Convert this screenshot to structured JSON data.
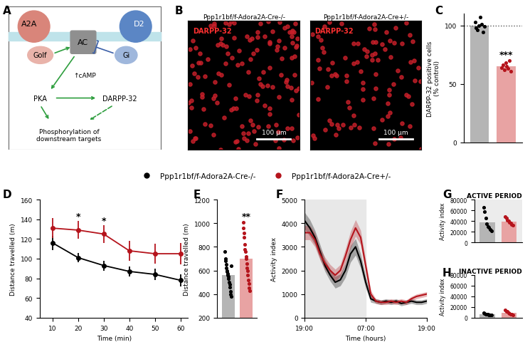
{
  "panel_labels": [
    "A",
    "B",
    "C",
    "D",
    "E",
    "F",
    "G",
    "H"
  ],
  "diagram": {
    "nodes": [
      {
        "label": "A2A"
      },
      {
        "label": "Golf"
      },
      {
        "label": "AC"
      },
      {
        "label": "D2"
      },
      {
        "label": "Gi"
      },
      {
        "label": "↑cAMP"
      },
      {
        "label": "PKA"
      },
      {
        "label": "DARPP-32"
      },
      {
        "label": "Phosphorylation of\ndownstream targets"
      }
    ]
  },
  "images": {
    "titles": [
      "Ppp1r1bf/f-Adora2A-Cre-/-",
      "Ppp1r1bf/f-Adora2A-Cre+/-"
    ],
    "stain": "DARPP-32",
    "scale_bar": "100 µm"
  },
  "chart_data": [
    {
      "type": "bar",
      "ylabel": "DARPP-32 positive cells\n(% control)",
      "categories": [
        null,
        null
      ],
      "values": [
        100,
        65
      ],
      "colors": [
        "#b5b5b5",
        "#e8a3a3"
      ],
      "points": [
        [
          103,
          98,
          96,
          100,
          107,
          101,
          94,
          99
        ],
        [
          64,
          66,
          62,
          68,
          65,
          63,
          70,
          61
        ]
      ],
      "reference": 100,
      "ylim": [
        0,
        110
      ],
      "yticks": [
        0,
        50,
        100
      ],
      "annotations": [
        {
          "text": "***",
          "x": 1
        }
      ]
    },
    {
      "type": "line",
      "xlabel": "Time (min)",
      "ylabel": "Distance travelled (m)",
      "legend": "upper center",
      "x": [
        10,
        20,
        30,
        40,
        50,
        60
      ],
      "series": [
        {
          "name": "Ppp1r1bf/f-Adora2A-Cre-/-",
          "color": "#000000",
          "marker": "o",
          "values": [
            116,
            101,
            93,
            87,
            84,
            78
          ],
          "errors": [
            7,
            5,
            5,
            5,
            6,
            6
          ]
        },
        {
          "name": "Ppp1r1bf/f-Adora2A-Cre+/-",
          "color": "#b5141c",
          "marker": "o",
          "values": [
            131,
            129,
            125,
            108,
            105,
            105
          ],
          "errors": [
            10,
            9,
            9,
            10,
            10,
            11
          ]
        }
      ],
      "xlim": [
        5,
        63
      ],
      "xticks": [
        10,
        20,
        30,
        40,
        50,
        60
      ],
      "ylim": [
        40,
        160
      ],
      "yticks": [
        40,
        60,
        80,
        100,
        120,
        140,
        160
      ],
      "annotations": [
        {
          "text": "*",
          "x": 20
        },
        {
          "text": "*",
          "x": 30
        }
      ]
    },
    {
      "type": "bar",
      "ylabel": "Distance travelled (m)",
      "categories": [
        null,
        null
      ],
      "values": [
        560,
        699
      ],
      "colors": [
        "#b5b5b5",
        "#e8a3a3"
      ],
      "points": [
        [
          760,
          700,
          680,
          650,
          620,
          600,
          590,
          570,
          560,
          550,
          530,
          500,
          480,
          460,
          420,
          400,
          380,
          640
        ],
        [
          1010,
          960,
          920,
          880,
          820,
          780,
          760,
          720,
          700,
          660,
          620,
          600,
          560,
          520,
          490,
          450,
          430
        ]
      ],
      "ylim": [
        200,
        1200
      ],
      "yticks": [
        200,
        400,
        600,
        800,
        1000,
        1200
      ],
      "annotations": [
        {
          "text": "**",
          "x": 1
        }
      ]
    },
    {
      "type": "line",
      "xlabel": "Time (hours)",
      "ylabel": "Activity index",
      "x": [
        0,
        1,
        2,
        3,
        4,
        5,
        6,
        7,
        8,
        9,
        10,
        11,
        12,
        13,
        14,
        15,
        16,
        17,
        18,
        19,
        20,
        21,
        22,
        23,
        24
      ],
      "series": [
        {
          "name": "Ppp1r1bf/f-Adora2A-Cre-/-",
          "color": "#000000",
          "values": [
            4100,
            3800,
            3400,
            2800,
            2200,
            1800,
            1500,
            1600,
            2000,
            2700,
            3000,
            2400,
            1500,
            800,
            700,
            650,
            700,
            650,
            700,
            600,
            650,
            700,
            650,
            650,
            700
          ],
          "errors": [
            350,
            350,
            300,
            300,
            250,
            250,
            250,
            250,
            300,
            350,
            350,
            300,
            250,
            150,
            100,
            100,
            100,
            100,
            100,
            100,
            100,
            100,
            100,
            100,
            100
          ]
        },
        {
          "name": "Ppp1r1bf/f-Adora2A-Cre+/-",
          "color": "#b5141c",
          "values": [
            3600,
            3600,
            3300,
            2700,
            2300,
            2000,
            1800,
            2000,
            2600,
            3300,
            3800,
            3400,
            2200,
            1000,
            700,
            650,
            650,
            700,
            650,
            700,
            650,
            800,
            900,
            950,
            1000
          ],
          "errors": [
            300,
            300,
            300,
            250,
            250,
            250,
            250,
            250,
            300,
            350,
            350,
            300,
            250,
            150,
            100,
            100,
            100,
            100,
            100,
            100,
            100,
            100,
            100,
            100,
            100
          ]
        }
      ],
      "shaded_region": [
        0,
        12
      ],
      "xlim": [
        0,
        24
      ],
      "xticks": [
        {
          "value": 0,
          "label": "19:00"
        },
        {
          "value": 12,
          "label": "07:00"
        },
        {
          "value": 24,
          "label": "19:00"
        }
      ],
      "ylim": [
        0,
        5000
      ],
      "yticks": [
        0,
        1000,
        2000,
        3000,
        4000,
        5000
      ]
    },
    {
      "type": "bar",
      "title": "ACTIVE PERIOD",
      "ylabel": "Activity index",
      "categories": [
        null,
        null
      ],
      "values": [
        38000,
        39000
      ],
      "colors": [
        "#b5b5b5",
        "#e8a3a3"
      ],
      "points": [
        [
          66000,
          58000,
          45000,
          35000,
          30000,
          28000,
          25000,
          22000
        ],
        [
          48000,
          45000,
          42000,
          40000,
          38000,
          36000,
          34000,
          32000
        ]
      ],
      "shaded": true,
      "ylim": [
        0,
        80000
      ],
      "yticks": [
        0,
        20000,
        40000,
        60000,
        80000
      ]
    },
    {
      "type": "bar",
      "title": "INACTIVE PERIOD",
      "ylabel": "Activity index",
      "categories": [
        null,
        null
      ],
      "values": [
        7000,
        9000
      ],
      "colors": [
        "#b5b5b5",
        "#e8a3a3"
      ],
      "points": [
        [
          9000,
          8000,
          7000,
          6500,
          6000,
          5500,
          5000,
          4500
        ],
        [
          14000,
          12000,
          11000,
          9000,
          8000,
          7000,
          6000,
          5000
        ]
      ],
      "shaded": false,
      "ylim": [
        0,
        80000
      ],
      "yticks": [
        0,
        20000,
        40000,
        60000,
        80000
      ]
    }
  ]
}
